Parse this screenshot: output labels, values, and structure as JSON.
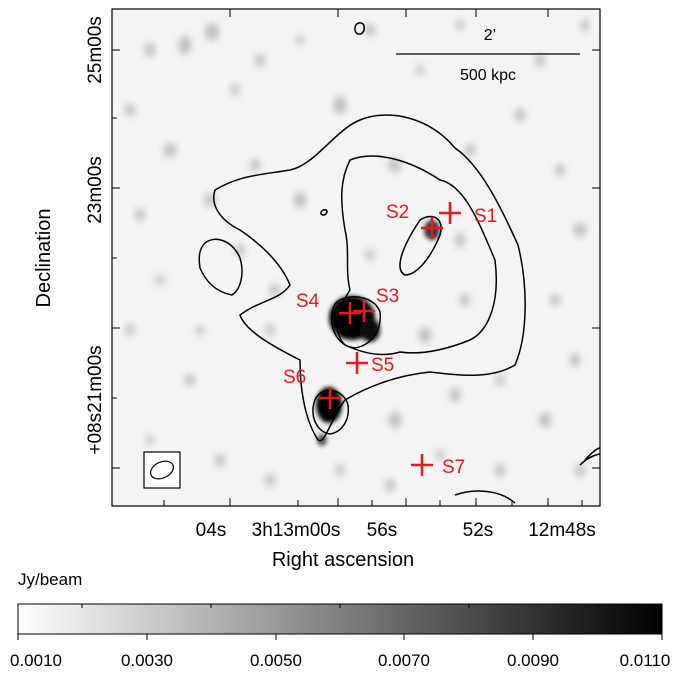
{
  "axes": {
    "xlabel": "Right ascension",
    "ylabel": "Declination",
    "x_ticks": [
      "04s",
      "3h13m00s",
      "56s",
      "52s",
      "12m48s"
    ],
    "y_ticks": [
      "25m00s",
      "23m00s",
      "+08s21m00s"
    ]
  },
  "scale_bar": {
    "angular": "2’",
    "physical": "500 kpc"
  },
  "sources": [
    {
      "label": "S1"
    },
    {
      "label": "S2"
    },
    {
      "label": "S3"
    },
    {
      "label": "S4"
    },
    {
      "label": "S5"
    },
    {
      "label": "S6"
    },
    {
      "label": "S7"
    }
  ],
  "colorbar": {
    "unit": "Jy/beam",
    "ticks": [
      "0.0010",
      "0.0030",
      "0.0050",
      "0.0070",
      "0.0090",
      "0.0110"
    ],
    "range": [
      0.001,
      0.011
    ]
  },
  "colors": {
    "marker": "#e11b22",
    "contour": "#000000",
    "colormap_low": "#ffffff",
    "colormap_high": "#000000"
  }
}
